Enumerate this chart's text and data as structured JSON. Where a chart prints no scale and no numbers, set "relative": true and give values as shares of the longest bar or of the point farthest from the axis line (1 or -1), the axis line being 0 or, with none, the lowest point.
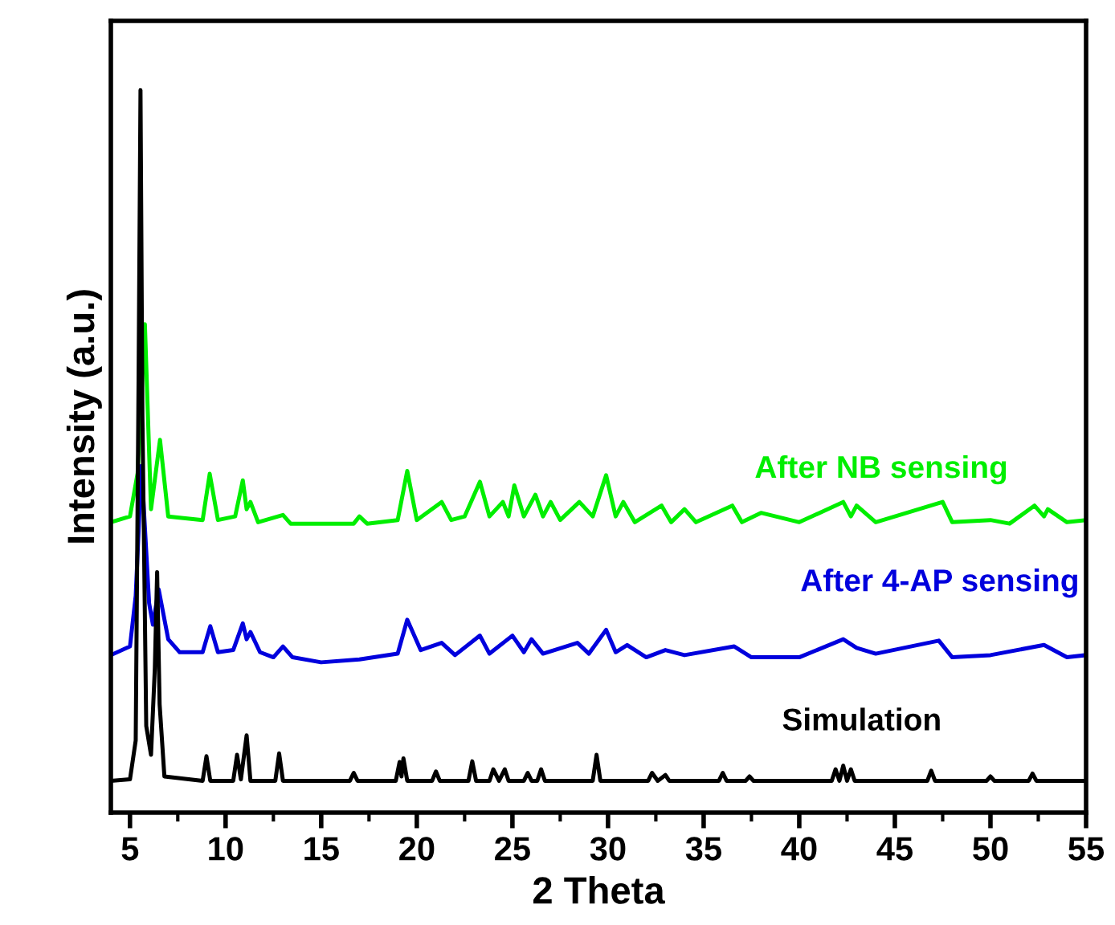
{
  "chart_data": {
    "type": "line",
    "relative": true,
    "xlabel": "2 Theta",
    "ylabel": "Intensity (a.u.)",
    "xlim": [
      4,
      55
    ],
    "xticks": [
      5,
      10,
      15,
      20,
      25,
      30,
      35,
      40,
      45,
      50,
      55
    ],
    "tick_labels": "x",
    "grid": false,
    "legend": false,
    "marker": "none",
    "line_style": "solid",
    "series": [
      {
        "name": "After NB sensing",
        "color": "#00ee00",
        "x": [
          4,
          5.0,
          5.4,
          5.78,
          6.1,
          6.57,
          7.0,
          8.8,
          9.17,
          9.6,
          10.5,
          10.9,
          11.1,
          11.3,
          11.7,
          13,
          13.4,
          16.7,
          17,
          17.4,
          19,
          19.5,
          20,
          21.3,
          21.8,
          22.5,
          23.3,
          23.8,
          24.5,
          24.8,
          25.1,
          25.6,
          26.2,
          26.6,
          27,
          27.5,
          28.5,
          29.2,
          29.9,
          30.4,
          30.8,
          31.4,
          32.8,
          33.3,
          34,
          34.6,
          36.5,
          37,
          38,
          40,
          42.3,
          42.7,
          43,
          44,
          47.5,
          48,
          50,
          51,
          52.3,
          52.8,
          53,
          54,
          55
        ],
        "values": [
          0.402,
          0.41,
          0.47,
          0.676,
          0.42,
          0.516,
          0.41,
          0.405,
          0.469,
          0.405,
          0.41,
          0.46,
          0.42,
          0.43,
          0.402,
          0.412,
          0.4,
          0.4,
          0.41,
          0.4,
          0.405,
          0.473,
          0.405,
          0.43,
          0.405,
          0.41,
          0.458,
          0.41,
          0.43,
          0.41,
          0.453,
          0.41,
          0.44,
          0.41,
          0.43,
          0.405,
          0.43,
          0.41,
          0.467,
          0.41,
          0.43,
          0.402,
          0.425,
          0.402,
          0.42,
          0.402,
          0.425,
          0.402,
          0.415,
          0.402,
          0.43,
          0.41,
          0.425,
          0.402,
          0.43,
          0.402,
          0.405,
          0.4,
          0.425,
          0.41,
          0.42,
          0.402,
          0.405
        ]
      },
      {
        "name": "After 4-AP sensing",
        "color": "#0000dd",
        "x": [
          4,
          5.0,
          5.3,
          5.6,
          6.0,
          6.2,
          6.5,
          7.0,
          7.6,
          8.8,
          9.2,
          9.6,
          10.4,
          10.9,
          11.1,
          11.3,
          11.8,
          12.5,
          13,
          13.5,
          15,
          17,
          19,
          19.5,
          20.2,
          21.3,
          22,
          23.3,
          23.8,
          25,
          25.6,
          26,
          26.6,
          28.4,
          29,
          29.9,
          30.4,
          31,
          32,
          33,
          34,
          36.6,
          37.5,
          40,
          42.3,
          43,
          44,
          47.3,
          48,
          50,
          52.8,
          54,
          55
        ],
        "values": [
          0.218,
          0.23,
          0.3,
          0.48,
          0.29,
          0.26,
          0.309,
          0.24,
          0.222,
          0.222,
          0.258,
          0.222,
          0.225,
          0.262,
          0.24,
          0.25,
          0.222,
          0.215,
          0.23,
          0.215,
          0.208,
          0.212,
          0.22,
          0.267,
          0.225,
          0.235,
          0.218,
          0.245,
          0.22,
          0.245,
          0.222,
          0.24,
          0.22,
          0.235,
          0.22,
          0.253,
          0.222,
          0.232,
          0.215,
          0.225,
          0.218,
          0.23,
          0.215,
          0.215,
          0.24,
          0.228,
          0.22,
          0.238,
          0.215,
          0.218,
          0.232,
          0.215,
          0.218
        ]
      },
      {
        "name": "Simulation",
        "color": "#000000",
        "x": [
          4,
          5.0,
          5.3,
          5.45,
          5.55,
          5.65,
          5.85,
          6.1,
          6.3,
          6.42,
          6.55,
          6.8,
          8.8,
          9.0,
          9.2,
          10.4,
          10.6,
          10.8,
          11.1,
          11.3,
          12.6,
          12.8,
          13.0,
          16.5,
          16.7,
          16.9,
          18.9,
          19.1,
          19.2,
          19.3,
          19.5,
          20.8,
          21.0,
          21.2,
          22.7,
          22.9,
          23.1,
          23.8,
          24.0,
          24.3,
          24.6,
          24.8,
          25.6,
          25.8,
          26.0,
          26.3,
          26.5,
          26.7,
          29.2,
          29.4,
          29.6,
          32.1,
          32.3,
          32.6,
          33.0,
          33.2,
          35.8,
          36.0,
          36.2,
          37.2,
          37.4,
          37.6,
          41.7,
          41.9,
          42.1,
          42.3,
          42.5,
          42.7,
          42.9,
          46.7,
          46.9,
          47.1,
          49.8,
          50.0,
          50.2,
          52.0,
          52.2,
          52.4,
          55
        ],
        "values": [
          0.044,
          0.046,
          0.1,
          0.6,
          1.0,
          0.55,
          0.12,
          0.08,
          0.2,
          0.333,
          0.15,
          0.05,
          0.044,
          0.078,
          0.044,
          0.044,
          0.08,
          0.046,
          0.107,
          0.044,
          0.044,
          0.082,
          0.044,
          0.044,
          0.055,
          0.044,
          0.044,
          0.07,
          0.05,
          0.075,
          0.044,
          0.044,
          0.057,
          0.044,
          0.044,
          0.071,
          0.044,
          0.044,
          0.06,
          0.044,
          0.06,
          0.044,
          0.044,
          0.055,
          0.044,
          0.044,
          0.06,
          0.044,
          0.044,
          0.08,
          0.044,
          0.044,
          0.055,
          0.044,
          0.052,
          0.044,
          0.044,
          0.055,
          0.044,
          0.044,
          0.05,
          0.044,
          0.044,
          0.06,
          0.044,
          0.065,
          0.044,
          0.06,
          0.044,
          0.044,
          0.058,
          0.044,
          0.044,
          0.05,
          0.044,
          0.044,
          0.054,
          0.044,
          0.044
        ]
      }
    ]
  }
}
